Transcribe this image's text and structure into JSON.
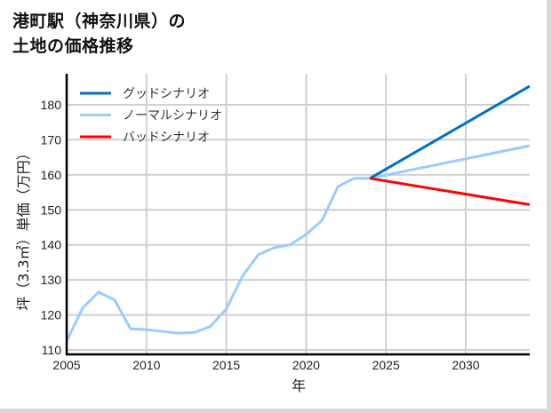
{
  "title": {
    "line1": "港町駅（神奈川県）の",
    "line2": "土地の価格推移"
  },
  "chart_data": {
    "type": "line",
    "title": "港町駅（神奈川県）の土地の価格推移",
    "xlabel": "年",
    "ylabel": "坪（3.3㎡）単価（万円）",
    "xlim": [
      2005,
      2034
    ],
    "ylim": [
      109,
      189
    ],
    "x_ticks": [
      2005,
      2010,
      2015,
      2020,
      2025,
      2030
    ],
    "y_ticks": [
      110,
      120,
      130,
      140,
      150,
      160,
      170,
      180
    ],
    "grid": true,
    "legend_position": "upper left",
    "series": [
      {
        "name": "グッドシナリオ",
        "color": "#0070C0",
        "x": [
          2024,
          2034
        ],
        "values": [
          159,
          185.3
        ]
      },
      {
        "name": "ノーマルシナリオ",
        "color": "#99CCFF",
        "x": [
          2005,
          2006,
          2007,
          2008,
          2009,
          2010,
          2011,
          2012,
          2013,
          2014,
          2015,
          2016,
          2017,
          2018,
          2019,
          2020,
          2021,
          2022,
          2023,
          2024,
          2034
        ],
        "values": [
          112.5,
          122,
          126.5,
          124.3,
          116,
          115.8,
          115.3,
          114.8,
          115,
          116.7,
          121.7,
          131,
          137.2,
          139.2,
          140,
          143,
          147,
          156.7,
          159,
          159,
          168.3
        ]
      },
      {
        "name": "バッドシナリオ",
        "color": "#FF0000",
        "x": [
          2024,
          2034
        ],
        "values": [
          159,
          151.5
        ]
      }
    ]
  }
}
